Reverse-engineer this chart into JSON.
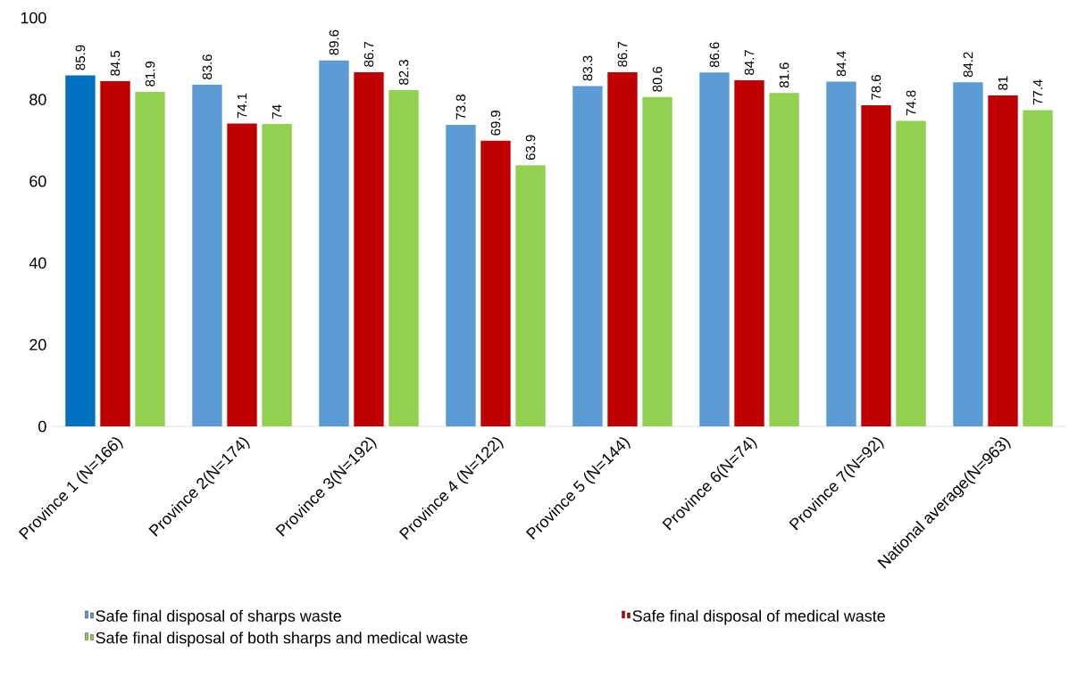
{
  "chart_data": {
    "type": "bar",
    "categories": [
      "Province 1 (N=166)",
      "Province 2(N=174)",
      "Province 3(N=192)",
      "Province 4 (N=122)",
      "Province 5 (N=144)",
      "Province 6(N=74)",
      "Province 7(N=92)",
      "National average(N=963)"
    ],
    "series": [
      {
        "name": "Safe final disposal of sharps waste",
        "color": "#5b9bd5",
        "colors": [
          "#0070c0",
          "#5b9bd5",
          "#5b9bd5",
          "#5b9bd5",
          "#5b9bd5",
          "#5b9bd5",
          "#5b9bd5",
          "#5b9bd5"
        ],
        "values": [
          85.9,
          83.6,
          89.6,
          73.8,
          83.3,
          86.6,
          84.4,
          84.2
        ]
      },
      {
        "name": "Safe final disposal of medical waste",
        "color": "#c00000",
        "values": [
          84.5,
          74.1,
          86.7,
          69.9,
          86.7,
          84.7,
          78.6,
          81
        ]
      },
      {
        "name": "Safe final disposal of both sharps and medical waste",
        "color": "#92d050",
        "values": [
          81.9,
          74,
          82.3,
          63.9,
          80.6,
          81.6,
          74.8,
          77.4
        ]
      }
    ],
    "ylim": [
      0,
      100
    ],
    "yticks": [
      0,
      20,
      40,
      60,
      80,
      100
    ],
    "grid": false,
    "data_labels": true,
    "legend": "bottom"
  }
}
